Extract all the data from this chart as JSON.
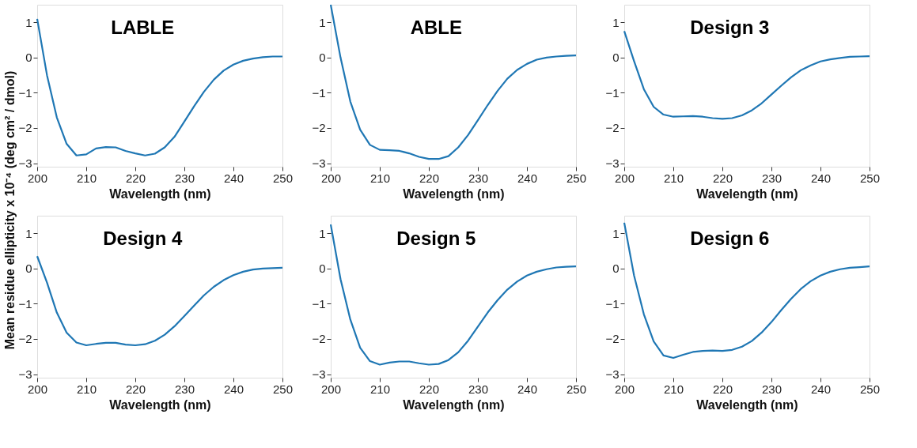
{
  "chart_data": [
    {
      "type": "line",
      "title": "LABLE",
      "xlabel": "Wavelength (nm)",
      "ylabel": "Mean residue ellipticity x 10⁻⁴ (deg cm² / dmol)",
      "xlim": [
        200,
        250
      ],
      "ylim": [
        -3.1,
        1.5
      ],
      "xticks": [
        200,
        210,
        220,
        230,
        240,
        250
      ],
      "yticks": [
        -3,
        -2,
        -1,
        0,
        1
      ],
      "grid": false,
      "line_style": "solid",
      "x": [
        200,
        202,
        204,
        206,
        208,
        210,
        212,
        214,
        216,
        218,
        220,
        222,
        224,
        226,
        228,
        230,
        232,
        234,
        236,
        238,
        240,
        242,
        244,
        246,
        248,
        250
      ],
      "series": [
        {
          "color": "#1f77b4",
          "values": [
            1.1,
            -0.5,
            -1.7,
            -2.45,
            -2.78,
            -2.75,
            -2.58,
            -2.54,
            -2.55,
            -2.65,
            -2.72,
            -2.78,
            -2.73,
            -2.55,
            -2.25,
            -1.82,
            -1.38,
            -0.97,
            -0.63,
            -0.37,
            -0.2,
            -0.09,
            -0.03,
            0.01,
            0.03,
            0.03
          ]
        }
      ]
    },
    {
      "type": "line",
      "title": "ABLE",
      "xlabel": "Wavelength (nm)",
      "xlim": [
        200,
        250
      ],
      "ylim": [
        -3.1,
        1.5
      ],
      "xticks": [
        200,
        210,
        220,
        230,
        240,
        250
      ],
      "yticks": [
        -3,
        -2,
        -1,
        0,
        1
      ],
      "grid": false,
      "line_style": "solid",
      "x": [
        200,
        202,
        204,
        206,
        208,
        210,
        212,
        214,
        216,
        218,
        220,
        222,
        224,
        226,
        228,
        230,
        232,
        234,
        236,
        238,
        240,
        242,
        244,
        246,
        248,
        250
      ],
      "series": [
        {
          "color": "#1f77b4",
          "values": [
            1.5,
            0.0,
            -1.25,
            -2.05,
            -2.48,
            -2.62,
            -2.63,
            -2.65,
            -2.72,
            -2.82,
            -2.88,
            -2.88,
            -2.8,
            -2.55,
            -2.2,
            -1.78,
            -1.35,
            -0.95,
            -0.6,
            -0.35,
            -0.18,
            -0.06,
            0.0,
            0.03,
            0.05,
            0.06
          ]
        }
      ]
    },
    {
      "type": "line",
      "title": "Design 3",
      "xlabel": "Wavelength (nm)",
      "xlim": [
        200,
        250
      ],
      "ylim": [
        -3.1,
        1.5
      ],
      "xticks": [
        200,
        210,
        220,
        230,
        240,
        250
      ],
      "yticks": [
        -3,
        -2,
        -1,
        0,
        1
      ],
      "grid": false,
      "line_style": "solid",
      "x": [
        200,
        202,
        204,
        206,
        208,
        210,
        212,
        214,
        216,
        218,
        220,
        222,
        224,
        226,
        228,
        230,
        232,
        234,
        236,
        238,
        240,
        242,
        244,
        246,
        248,
        250
      ],
      "series": [
        {
          "color": "#1f77b4",
          "values": [
            0.75,
            -0.1,
            -0.9,
            -1.4,
            -1.62,
            -1.68,
            -1.67,
            -1.66,
            -1.68,
            -1.72,
            -1.74,
            -1.72,
            -1.64,
            -1.5,
            -1.3,
            -1.05,
            -0.8,
            -0.56,
            -0.36,
            -0.22,
            -0.11,
            -0.05,
            -0.01,
            0.02,
            0.03,
            0.04
          ]
        }
      ]
    },
    {
      "type": "line",
      "title": "Design 4",
      "xlabel": "Wavelength (nm)",
      "xlim": [
        200,
        250
      ],
      "ylim": [
        -3.1,
        1.5
      ],
      "xticks": [
        200,
        210,
        220,
        230,
        240,
        250
      ],
      "yticks": [
        -3,
        -2,
        -1,
        0,
        1
      ],
      "grid": false,
      "line_style": "solid",
      "x": [
        200,
        202,
        204,
        206,
        208,
        210,
        212,
        214,
        216,
        218,
        220,
        222,
        224,
        226,
        228,
        230,
        232,
        234,
        236,
        238,
        240,
        242,
        244,
        246,
        248,
        250
      ],
      "series": [
        {
          "color": "#1f77b4",
          "values": [
            0.35,
            -0.4,
            -1.25,
            -1.82,
            -2.1,
            -2.18,
            -2.14,
            -2.11,
            -2.11,
            -2.16,
            -2.18,
            -2.15,
            -2.05,
            -1.88,
            -1.64,
            -1.35,
            -1.05,
            -0.76,
            -0.52,
            -0.33,
            -0.19,
            -0.09,
            -0.03,
            0.0,
            0.01,
            0.02
          ]
        }
      ]
    },
    {
      "type": "line",
      "title": "Design 5",
      "xlabel": "Wavelength (nm)",
      "xlim": [
        200,
        250
      ],
      "ylim": [
        -3.1,
        1.5
      ],
      "xticks": [
        200,
        210,
        220,
        230,
        240,
        250
      ],
      "yticks": [
        -3,
        -2,
        -1,
        0,
        1
      ],
      "grid": false,
      "line_style": "solid",
      "x": [
        200,
        202,
        204,
        206,
        208,
        210,
        212,
        214,
        216,
        218,
        220,
        222,
        224,
        226,
        228,
        230,
        232,
        234,
        236,
        238,
        240,
        242,
        244,
        246,
        248,
        250
      ],
      "series": [
        {
          "color": "#1f77b4",
          "values": [
            1.25,
            -0.3,
            -1.45,
            -2.25,
            -2.63,
            -2.73,
            -2.67,
            -2.64,
            -2.64,
            -2.69,
            -2.73,
            -2.71,
            -2.6,
            -2.38,
            -2.05,
            -1.65,
            -1.25,
            -0.9,
            -0.6,
            -0.37,
            -0.2,
            -0.09,
            -0.02,
            0.03,
            0.05,
            0.06
          ]
        }
      ]
    },
    {
      "type": "line",
      "title": "Design 6",
      "xlabel": "Wavelength (nm)",
      "xlim": [
        200,
        250
      ],
      "ylim": [
        -3.1,
        1.5
      ],
      "xticks": [
        200,
        210,
        220,
        230,
        240,
        250
      ],
      "yticks": [
        -3,
        -2,
        -1,
        0,
        1
      ],
      "grid": false,
      "line_style": "solid",
      "x": [
        200,
        202,
        204,
        206,
        208,
        210,
        212,
        214,
        216,
        218,
        220,
        222,
        224,
        226,
        228,
        230,
        232,
        234,
        236,
        238,
        240,
        242,
        244,
        246,
        248,
        250
      ],
      "series": [
        {
          "color": "#1f77b4",
          "values": [
            1.3,
            -0.2,
            -1.3,
            -2.07,
            -2.47,
            -2.54,
            -2.45,
            -2.37,
            -2.34,
            -2.33,
            -2.34,
            -2.31,
            -2.22,
            -2.06,
            -1.82,
            -1.52,
            -1.18,
            -0.86,
            -0.58,
            -0.36,
            -0.2,
            -0.09,
            -0.02,
            0.02,
            0.04,
            0.06
          ]
        }
      ]
    }
  ]
}
